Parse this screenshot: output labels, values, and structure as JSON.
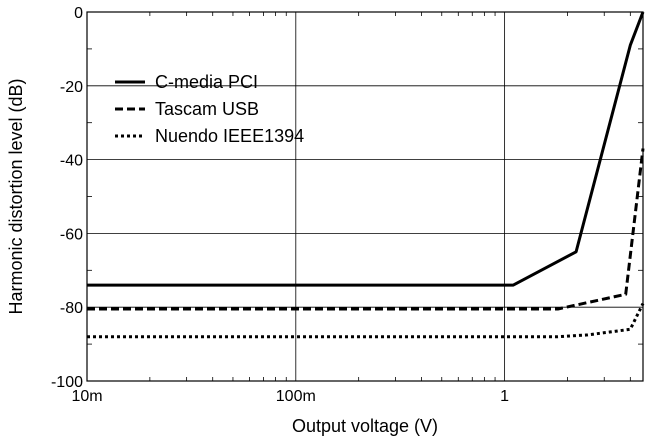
{
  "chart_data": {
    "type": "line",
    "title": "",
    "xlabel": "Output voltage (V)",
    "ylabel": "Harmonic distortion level (dB)",
    "x_scale": "log",
    "xlim": [
      0.01,
      4.6
    ],
    "ylim": [
      -100,
      0
    ],
    "x_ticks": [
      0.01,
      0.1,
      1
    ],
    "x_tick_labels": [
      "10m",
      "100m",
      "1"
    ],
    "y_ticks": [
      0,
      -20,
      -40,
      -60,
      -80,
      -100
    ],
    "y_tick_labels": [
      "0",
      "-20",
      "-40",
      "-60",
      "-80",
      "-100"
    ],
    "grid": true,
    "legend_position": "top-left",
    "series": [
      {
        "name": "C-media PCI",
        "style": "solid",
        "points": [
          [
            0.01,
            -74
          ],
          [
            0.2,
            -74
          ],
          [
            1.1,
            -74
          ],
          [
            2.2,
            -65
          ],
          [
            4.0,
            -9
          ],
          [
            4.6,
            0
          ]
        ]
      },
      {
        "name": "Tascam USB",
        "style": "dashed",
        "points": [
          [
            0.01,
            -80.5
          ],
          [
            0.3,
            -80.5
          ],
          [
            1.8,
            -80.5
          ],
          [
            3.8,
            -76.5
          ],
          [
            4.6,
            -37
          ]
        ]
      },
      {
        "name": "Nuendo IEEE1394",
        "style": "dotted",
        "points": [
          [
            0.01,
            -88
          ],
          [
            0.5,
            -88
          ],
          [
            1.8,
            -88
          ],
          [
            2.5,
            -87.5
          ],
          [
            4.0,
            -86
          ],
          [
            4.6,
            -79
          ]
        ]
      }
    ]
  }
}
